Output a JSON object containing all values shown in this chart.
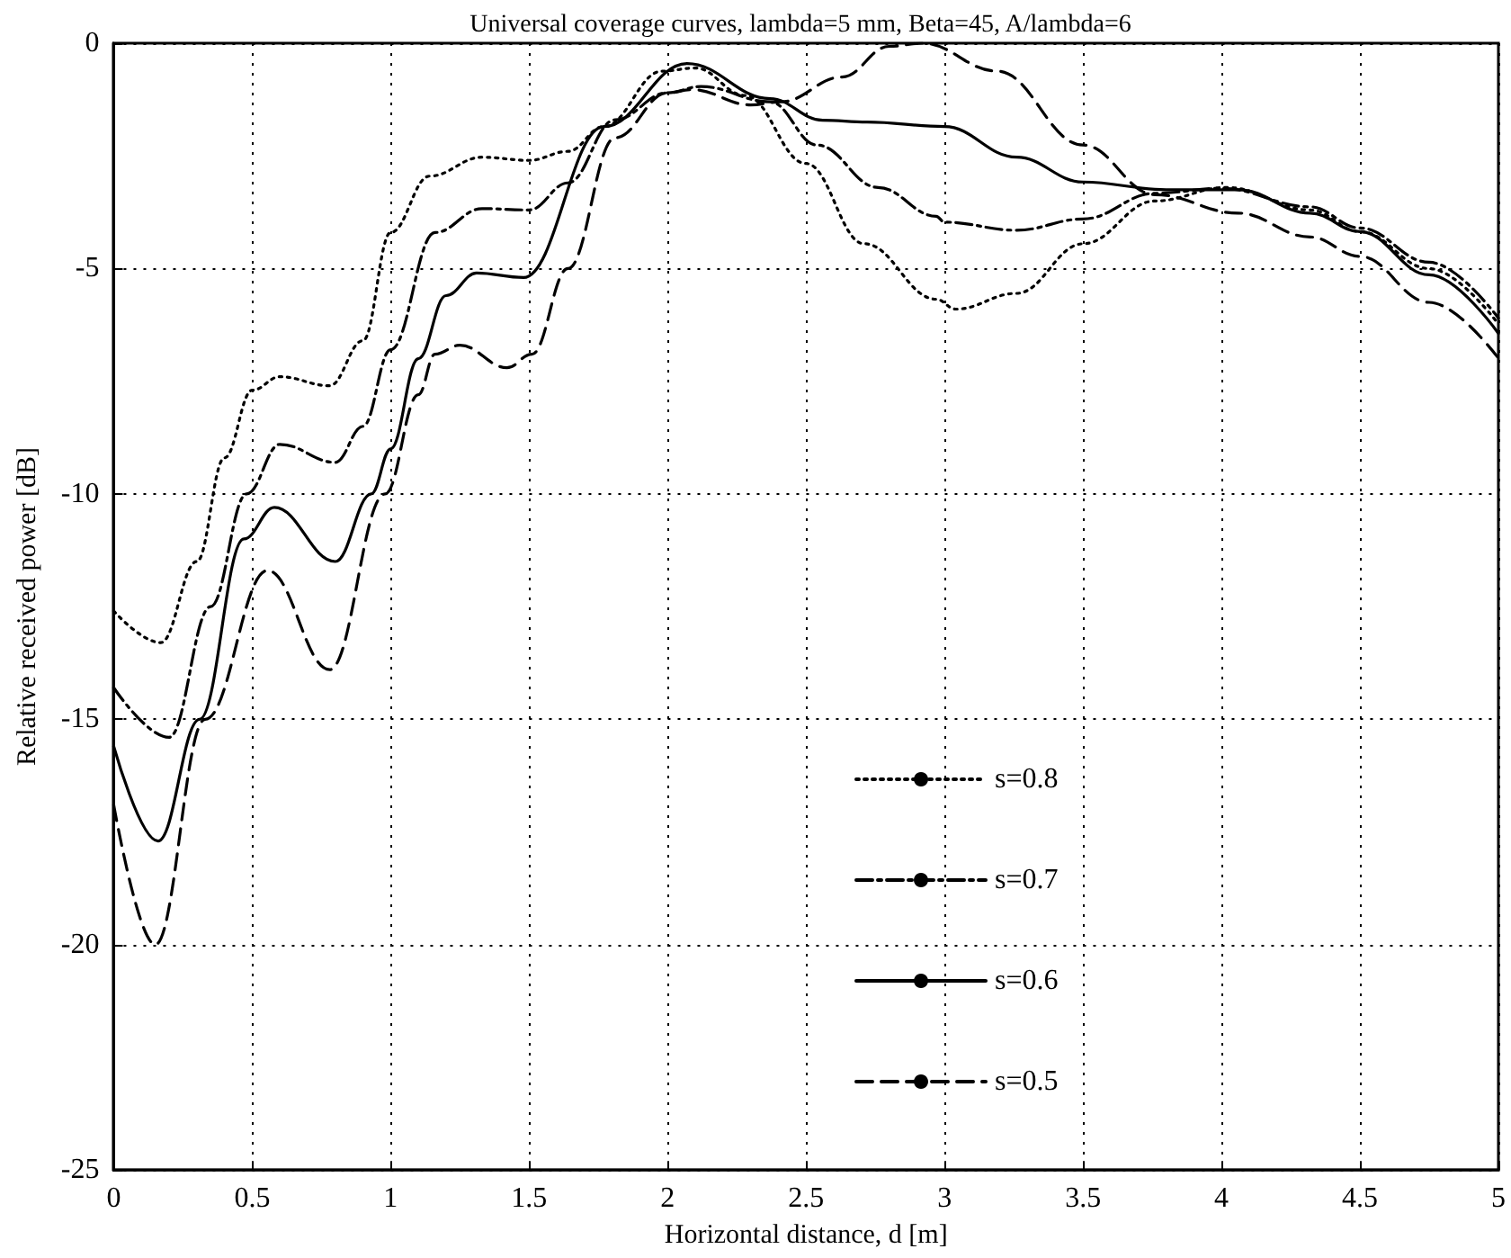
{
  "chart_data": {
    "type": "line",
    "title": "Universal coverage curves, lambda=5 mm, Beta=45, A/lambda=6",
    "xlabel": "Horizontal distance, d [m]",
    "ylabel": "Relative received power [dB]",
    "xlim": [
      0,
      5
    ],
    "xticks": [
      0,
      0.5,
      1,
      1.5,
      2,
      2.5,
      3,
      3.5,
      4,
      4.5,
      5
    ],
    "ylim": [
      -25,
      0
    ],
    "yticks": [
      -25,
      -20,
      -15,
      -10,
      -5,
      0
    ],
    "grid": true,
    "legend": "bottom right",
    "marker": "none",
    "series": [
      {
        "name": "s=0.8",
        "color": "#000000",
        "line_style": "dotted",
        "x": [
          0,
          0.17,
          0.3,
          0.4,
          0.5,
          0.6,
          0.78,
          0.9,
          1.0,
          1.14,
          1.33,
          1.5,
          1.64,
          1.77,
          1.98,
          2.1,
          2.28,
          2.5,
          2.71,
          2.97,
          3.04,
          3.26,
          3.5,
          3.76,
          4.02,
          4.32,
          4.5,
          4.75,
          5.0
        ],
        "values": [
          -12.6,
          -13.3,
          -11.5,
          -9.2,
          -7.7,
          -7.4,
          -7.6,
          -6.6,
          -4.2,
          -2.95,
          -2.53,
          -2.6,
          -2.4,
          -1.85,
          -0.62,
          -0.55,
          -1.16,
          -2.67,
          -4.45,
          -5.68,
          -5.9,
          -5.55,
          -4.45,
          -3.5,
          -3.2,
          -3.7,
          -4.18,
          -5.0,
          -6.23
        ]
      },
      {
        "name": "s=0.7",
        "color": "#000000",
        "line_style": "dashdot",
        "x": [
          0,
          0.2,
          0.35,
          0.48,
          0.6,
          0.8,
          0.9,
          1.0,
          1.16,
          1.33,
          1.5,
          1.64,
          1.81,
          2.0,
          2.12,
          2.37,
          2.54,
          2.76,
          2.97,
          3.0,
          3.26,
          3.5,
          3.76,
          4.0,
          4.32,
          4.5,
          4.75,
          5.0
        ],
        "values": [
          -14.3,
          -15.4,
          -12.5,
          -10.0,
          -8.9,
          -9.3,
          -8.5,
          -6.8,
          -4.2,
          -3.67,
          -3.7,
          -3.1,
          -1.7,
          -1.1,
          -0.96,
          -1.3,
          -2.26,
          -3.2,
          -3.84,
          -3.97,
          -4.15,
          -3.9,
          -3.33,
          -3.22,
          -3.63,
          -4.1,
          -4.86,
          -6.1
        ]
      },
      {
        "name": "s=0.6",
        "color": "#000000",
        "line_style": "solid",
        "x": [
          0,
          0.16,
          0.31,
          0.47,
          0.58,
          0.8,
          0.93,
          1.0,
          1.1,
          1.2,
          1.31,
          1.48,
          1.77,
          2.07,
          2.37,
          2.56,
          2.72,
          3.0,
          3.26,
          3.5,
          3.8,
          4.06,
          4.32,
          4.5,
          4.75,
          5.0
        ],
        "values": [
          -15.6,
          -17.7,
          -15.0,
          -11.0,
          -10.3,
          -11.5,
          -10.0,
          -9.0,
          -7.0,
          -5.6,
          -5.1,
          -5.2,
          -1.85,
          -0.45,
          -1.23,
          -1.71,
          -1.75,
          -1.85,
          -2.53,
          -3.08,
          -3.25,
          -3.25,
          -3.77,
          -4.18,
          -5.14,
          -6.44
        ]
      },
      {
        "name": "s=0.5",
        "color": "#000000",
        "line_style": "dashed",
        "x": [
          0,
          0.15,
          0.33,
          0.555,
          0.78,
          0.98,
          1.1,
          1.16,
          1.25,
          1.42,
          1.51,
          1.64,
          1.81,
          2.0,
          2.09,
          2.3,
          2.41,
          2.63,
          2.8,
          2.92,
          3.19,
          3.5,
          3.76,
          4.06,
          4.32,
          4.5,
          4.75,
          5.0
        ],
        "values": [
          -16.9,
          -20.0,
          -15.0,
          -11.7,
          -13.9,
          -10.0,
          -7.8,
          -6.9,
          -6.7,
          -7.2,
          -6.9,
          -5.0,
          -2.1,
          -1.1,
          -1.03,
          -1.37,
          -1.3,
          -0.75,
          -0.07,
          0,
          -0.62,
          -2.26,
          -3.36,
          -3.77,
          -4.3,
          -4.73,
          -5.75,
          -6.99
        ]
      }
    ]
  }
}
